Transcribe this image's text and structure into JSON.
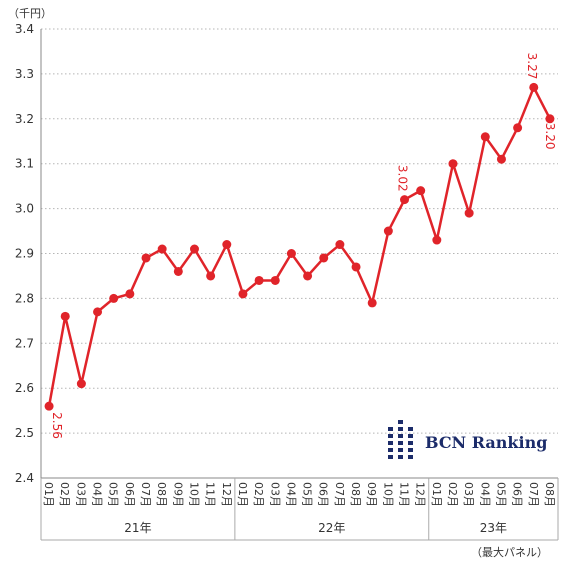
{
  "chart_data": {
    "type": "line",
    "title": "",
    "unit_label": "（千円）",
    "note": "（最大パネル）",
    "ylim": [
      2.4,
      3.4
    ],
    "yticks": [
      "2.4",
      "2.5",
      "2.6",
      "2.7",
      "2.8",
      "2.9",
      "3.0",
      "3.1",
      "3.2",
      "3.3",
      "3.4"
    ],
    "grid": true,
    "categories": [
      "01月",
      "02月",
      "03月",
      "04月",
      "05月",
      "06月",
      "07月",
      "08月",
      "09月",
      "10月",
      "11月",
      "12月",
      "01月",
      "02月",
      "03月",
      "04月",
      "05月",
      "06月",
      "07月",
      "08月",
      "09月",
      "10月",
      "11月",
      "12月",
      "01月",
      "02月",
      "03月",
      "04月",
      "05月",
      "06月",
      "07月",
      "08月"
    ],
    "year_groups": [
      {
        "label": "21年",
        "start": 0,
        "end": 11
      },
      {
        "label": "22年",
        "start": 12,
        "end": 23
      },
      {
        "label": "23年",
        "start": 24,
        "end": 31
      }
    ],
    "series": [
      {
        "color": "#e0242a",
        "values": [
          2.56,
          2.76,
          2.61,
          2.77,
          2.8,
          2.81,
          2.89,
          2.91,
          2.86,
          2.91,
          2.85,
          2.92,
          2.81,
          2.84,
          2.84,
          2.9,
          2.85,
          2.89,
          2.92,
          2.87,
          2.79,
          2.95,
          3.02,
          3.04,
          2.93,
          3.1,
          2.99,
          3.16,
          3.11,
          3.18,
          3.27,
          3.2
        ]
      }
    ],
    "data_labels": [
      {
        "index": 0,
        "text": "2.56"
      },
      {
        "index": 22,
        "text": "3.02"
      },
      {
        "index": 30,
        "text": "3.27"
      },
      {
        "index": 31,
        "text": "3.20"
      }
    ]
  },
  "logo": {
    "text": "BCN Ranking",
    "color": "#1c2c6a"
  }
}
